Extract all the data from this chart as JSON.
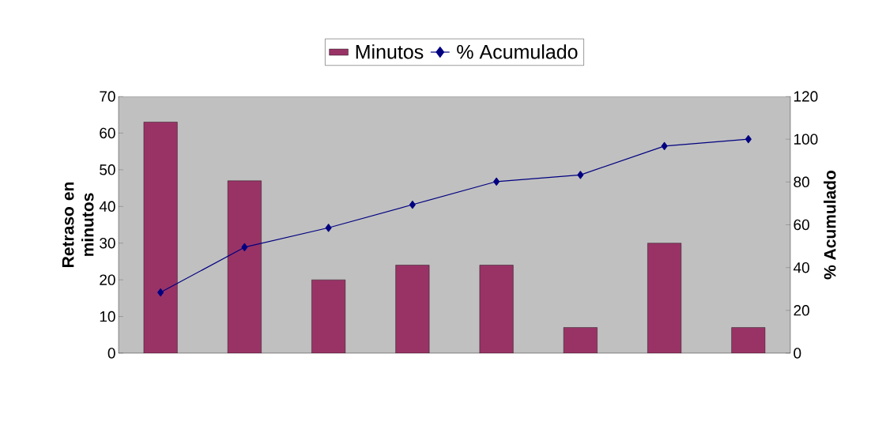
{
  "chart_data": {
    "type": "bar",
    "categories": [
      null,
      null,
      null,
      null,
      null,
      null,
      null,
      null
    ],
    "series": [
      {
        "name": "Minutos",
        "color": "#993366",
        "values": [
          63,
          47,
          20,
          24,
          24,
          7,
          30,
          7
        ]
      },
      {
        "name": "% Acumulado",
        "type": "line",
        "axis": "y2",
        "color": "#000080",
        "values": [
          28.4,
          49.5,
          58.6,
          69.4,
          80.2,
          83.3,
          96.8,
          100
        ]
      }
    ],
    "ylabel": "Retraso en minutos",
    "y2label": "% Acumulado",
    "ylim": [
      0,
      70
    ],
    "yticks": [
      0,
      10,
      20,
      30,
      40,
      50,
      60,
      70
    ],
    "y2lim": [
      0,
      120
    ],
    "y2ticks": [
      0,
      20,
      40,
      60,
      80,
      100,
      120
    ],
    "legend": "top",
    "marker": "diamond",
    "tick_labels": "y"
  }
}
